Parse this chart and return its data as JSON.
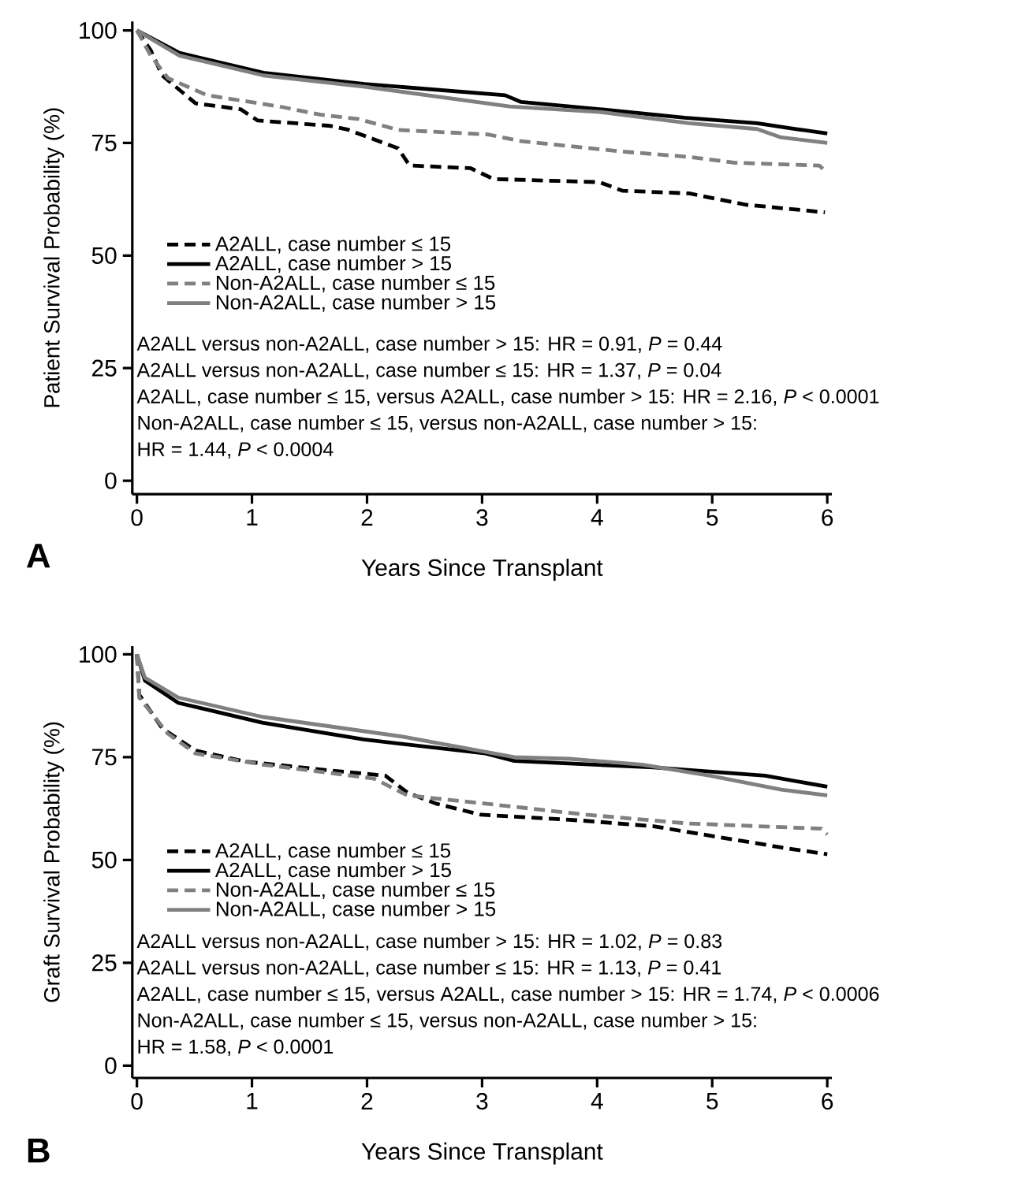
{
  "chart_data": [
    {
      "type": "line",
      "title": "A",
      "xlabel": "Years Since Transplant",
      "ylabel": "Patient Survival Probability (%)",
      "xlim": [
        -0.04,
        6.04
      ],
      "ylim": [
        -3,
        102
      ],
      "xticks": [
        0,
        1,
        2,
        3,
        4,
        5,
        6
      ],
      "yticks": [
        0,
        25,
        50,
        75,
        100
      ],
      "legend": "left",
      "series": [
        {
          "name": "A2ALL, case number ≤ 15",
          "color": "#000000",
          "line_style": "dashed",
          "x": [
            0,
            0.12,
            0.22,
            0.51,
            0.9,
            1.05,
            1.68,
            1.83,
            2.27,
            2.37,
            2.9,
            3.1,
            4.02,
            4.22,
            4.8,
            5.29,
            5.98
          ],
          "values": [
            100,
            95.6,
            90,
            83.8,
            82.5,
            80,
            78.8,
            78,
            73.8,
            70,
            69.4,
            67,
            66.3,
            64.4,
            63.8,
            61.3,
            59.6
          ]
        },
        {
          "name": "A2ALL, case number > 15",
          "color": "#000000",
          "line_style": "solid",
          "x": [
            0,
            0.37,
            1.1,
            1.98,
            3.2,
            3.34,
            4.02,
            4.76,
            5.39,
            5.73,
            6.0
          ],
          "values": [
            100,
            95,
            90.6,
            88.1,
            85.6,
            84.1,
            82.5,
            80.6,
            79.4,
            78.1,
            77.1
          ]
        },
        {
          "name": "Non-A2ALL, case number ≤ 15",
          "color": "#808080",
          "line_style": "dashed",
          "x": [
            0,
            0.12,
            0.27,
            0.61,
            1.24,
            1.59,
            1.93,
            2.27,
            3.05,
            3.34,
            4.22,
            4.8,
            5.2,
            5.93,
            6.0
          ],
          "values": [
            100,
            94.4,
            89.4,
            85.6,
            83.1,
            81.3,
            80.3,
            77.9,
            76.9,
            75.4,
            73.1,
            71.9,
            70.6,
            70,
            68.4
          ]
        },
        {
          "name": "Non-A2ALL, case number > 15",
          "color": "#808080",
          "line_style": "solid",
          "x": [
            0,
            0.37,
            1.1,
            1.98,
            3.24,
            4.02,
            4.8,
            5.39,
            5.59,
            6.0
          ],
          "values": [
            100,
            94.4,
            90,
            87.5,
            83.1,
            81.9,
            79.4,
            78.1,
            76.3,
            75
          ]
        }
      ],
      "annotations": [
        "A2ALL versus non-A2ALL, case number > 15: HR = 0.91, *P* = 0.44",
        "A2ALL versus non-A2ALL, case number ≤ 15: HR = 1.37, *P* = 0.04",
        "A2ALL, case number ≤ 15, versus A2ALL, case number > 15: HR = 2.16, *P* < 0.0001",
        "Non-A2ALL, case number ≤ 15, versus non-A2ALL, case number > 15:",
        "HR = 1.44, *P* < 0.0004"
      ]
    },
    {
      "type": "line",
      "title": "B",
      "xlabel": "Years Since Transplant",
      "ylabel": "Graft Survival Probability (%)",
      "xlim": [
        -0.04,
        6.04
      ],
      "ylim": [
        -3,
        102
      ],
      "xticks": [
        0,
        1,
        2,
        3,
        4,
        5,
        6
      ],
      "yticks": [
        0,
        25,
        50,
        75,
        100
      ],
      "legend": "left",
      "series": [
        {
          "name": "A2ALL, case number ≤ 15",
          "color": "#000000",
          "line_style": "dashed",
          "x": [
            0,
            0.02,
            0.22,
            0.51,
            0.95,
            1.67,
            2.16,
            2.35,
            2.6,
            2.99,
            3.86,
            4.49,
            5.22,
            5.66,
            6.0
          ],
          "values": [
            100,
            90.2,
            82,
            76.6,
            73.9,
            71.8,
            70.5,
            66.4,
            63.7,
            61,
            59.6,
            58.2,
            54.8,
            52.8,
            51.4
          ]
        },
        {
          "name": "A2ALL, case number > 15",
          "color": "#000000",
          "line_style": "solid",
          "x": [
            0,
            0.07,
            0.36,
            1.09,
            1.97,
            3.03,
            3.28,
            4.49,
            5.46,
            6.0
          ],
          "values": [
            100,
            93.6,
            88.2,
            83.4,
            79.3,
            75.9,
            74.1,
            72.5,
            70.5,
            67.8
          ]
        },
        {
          "name": "Non-A2ALL, case number ≤ 15",
          "color": "#808080",
          "line_style": "dashed",
          "x": [
            0,
            0.02,
            0.27,
            0.51,
            1.09,
            2.06,
            2.35,
            3.03,
            3.91,
            4.78,
            5.95,
            6.0
          ],
          "values": [
            100,
            89.5,
            80.7,
            75.9,
            73.2,
            69.8,
            65.7,
            63.7,
            61,
            58.9,
            57.6,
            56.2
          ]
        },
        {
          "name": "Non-A2ALL, case number > 15",
          "color": "#808080",
          "line_style": "solid",
          "x": [
            0,
            0.07,
            0.36,
            1.09,
            2.31,
            3.28,
            3.76,
            4.39,
            4.98,
            5.6,
            6.0
          ],
          "values": [
            100,
            94.3,
            89.5,
            84.8,
            80,
            75,
            74.6,
            73.2,
            70.5,
            67.1,
            65.7
          ]
        }
      ],
      "annotations": [
        "A2ALL versus non-A2ALL, case number > 15: HR = 1.02, *P* = 0.83",
        "A2ALL versus non-A2ALL, case number ≤ 15: HR = 1.13, *P* = 0.41",
        "A2ALL, case number ≤ 15, versus A2ALL, case number > 15: HR = 1.74, *P* < 0.0006",
        "Non-A2ALL, case number ≤ 15, versus non-A2ALL, case number > 15:",
        "HR = 1.58, *P* < 0.0001"
      ]
    }
  ]
}
